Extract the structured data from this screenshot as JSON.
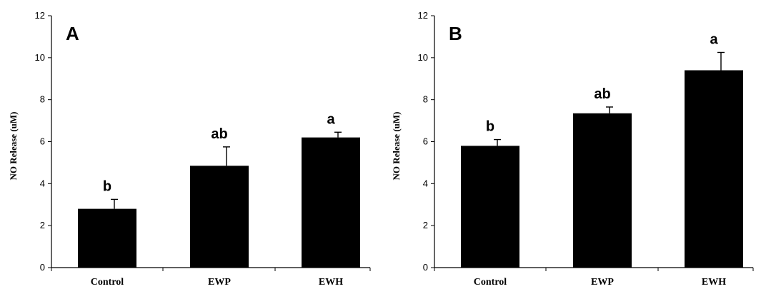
{
  "chart_data": [
    {
      "type": "bar",
      "panel": "A",
      "categories": [
        "Control",
        "EWP",
        "EWH"
      ],
      "values": [
        2.8,
        4.85,
        6.2
      ],
      "errors": [
        0.45,
        0.9,
        0.25
      ],
      "significance": [
        "b",
        "ab",
        "a"
      ],
      "ylabel": "NO Release (uM)",
      "xlabel": "",
      "ylim": [
        0,
        12
      ],
      "yticks": [
        0,
        2,
        4,
        6,
        8,
        10,
        12
      ],
      "bar_color": "#000000"
    },
    {
      "type": "bar",
      "panel": "B",
      "categories": [
        "Control",
        "EWP",
        "EWH"
      ],
      "values": [
        5.8,
        7.35,
        9.4
      ],
      "errors": [
        0.3,
        0.3,
        0.85
      ],
      "significance": [
        "b",
        "ab",
        "a"
      ],
      "ylabel": "NO Release (uM)",
      "xlabel": "",
      "ylim": [
        0,
        12
      ],
      "yticks": [
        0,
        2,
        4,
        6,
        8,
        10,
        12
      ],
      "bar_color": "#000000"
    }
  ]
}
